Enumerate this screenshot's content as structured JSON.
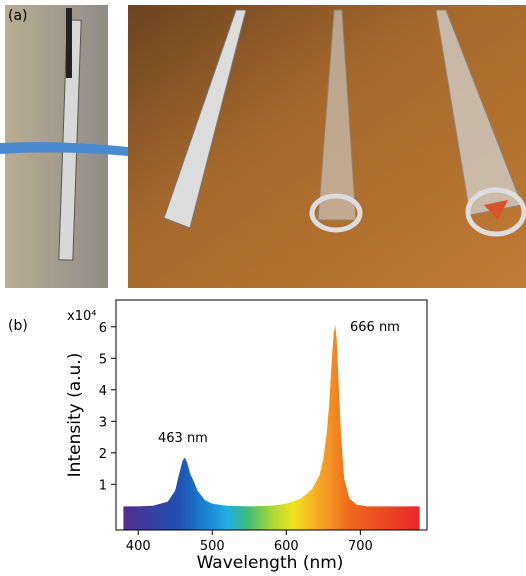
{
  "panel_labels": [
    "(a)",
    "(b)"
  ],
  "chart_data": {
    "type": "area",
    "y_multiplier": "x10⁴",
    "xlabel": "Wavelength (nm)",
    "ylabel": "Intensity (a.u.)",
    "x": [
      380,
      400,
      420,
      440,
      450,
      455,
      460,
      463,
      466,
      470,
      475,
      480,
      490,
      500,
      520,
      550,
      580,
      600,
      620,
      635,
      645,
      650,
      655,
      658,
      661,
      664,
      666,
      668,
      671,
      674,
      678,
      685,
      695,
      710,
      740,
      780
    ],
    "values": [
      0.3,
      0.3,
      0.32,
      0.45,
      0.8,
      1.3,
      1.75,
      1.85,
      1.7,
      1.35,
      1.1,
      0.8,
      0.5,
      0.38,
      0.32,
      0.3,
      0.32,
      0.38,
      0.55,
      0.85,
      1.3,
      1.8,
      2.7,
      3.6,
      4.8,
      5.8,
      6.05,
      5.6,
      4.0,
      2.5,
      1.2,
      0.55,
      0.35,
      0.3,
      0.3,
      0.3
    ],
    "xlim": [
      370,
      790
    ],
    "xticks": [
      400,
      500,
      600,
      700
    ],
    "ylim": [
      -0.45,
      6.85
    ],
    "yticks": [
      1,
      2,
      3,
      4,
      5,
      6
    ],
    "annotations": [
      "463 nm",
      "666 nm"
    ]
  }
}
